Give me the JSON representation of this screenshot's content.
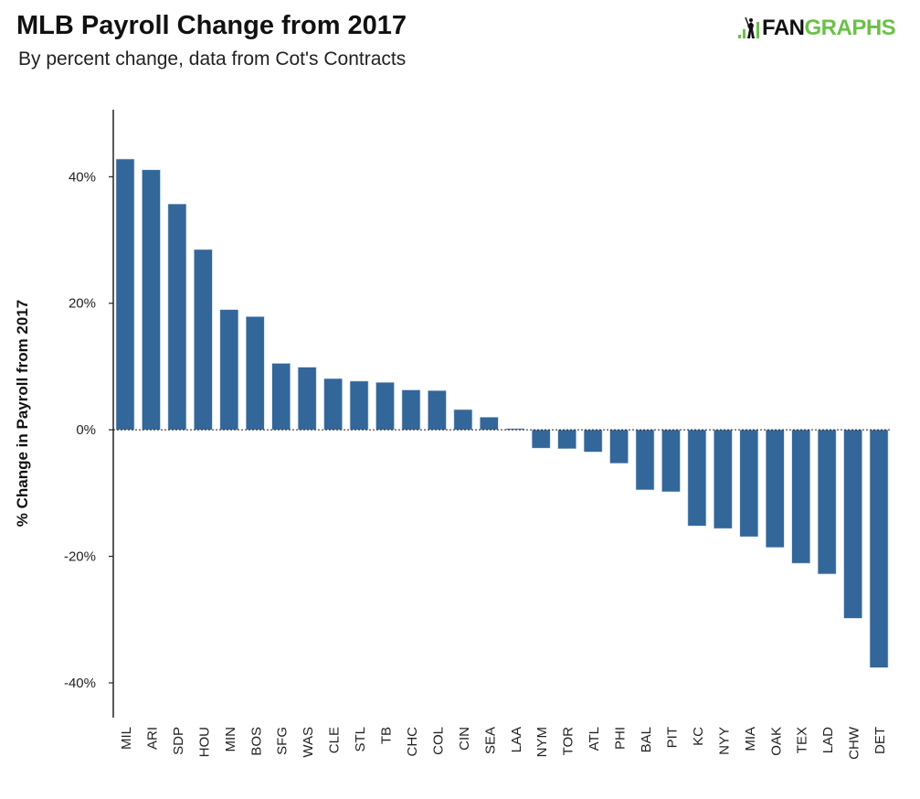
{
  "header": {
    "title": "MLB Payroll Change from 2017",
    "subtitle": "By percent change, data from Cot's Contracts",
    "logo_text": "FANGRAPHS"
  },
  "colors": {
    "bar": "#336699",
    "logo_green": "#6cc04a"
  },
  "chart_data": {
    "type": "bar",
    "title": "MLB Payroll Change from 2017",
    "subtitle": "By percent change, data from Cot's Contracts",
    "xlabel": "",
    "ylabel": "% Change in Payroll from 2017",
    "ylim": [
      -45.5,
      50.6
    ],
    "yticks": [
      40,
      20,
      0,
      -20,
      -40
    ],
    "ytick_labels": [
      "40%",
      "20%",
      "0%",
      "-20%",
      "-40%"
    ],
    "grid": false,
    "zero_line": "dotted",
    "categories": [
      "MIL",
      "ARI",
      "SDP",
      "HOU",
      "MIN",
      "BOS",
      "SFG",
      "WAS",
      "CLE",
      "STL",
      "TB",
      "CHC",
      "COL",
      "CIN",
      "SEA",
      "LAA",
      "NYM",
      "TOR",
      "ATL",
      "PHI",
      "BAL",
      "PIT",
      "KC",
      "NYY",
      "MIA",
      "OAK",
      "TEX",
      "LAD",
      "CHW",
      "DET"
    ],
    "values": [
      42.8,
      41.1,
      35.7,
      28.5,
      19.0,
      17.9,
      10.5,
      9.9,
      8.1,
      7.7,
      7.5,
      6.3,
      6.2,
      3.2,
      2.0,
      0.2,
      -2.9,
      -3.0,
      -3.5,
      -5.3,
      -9.5,
      -9.8,
      -15.2,
      -15.6,
      -16.9,
      -18.6,
      -21.1,
      -22.8,
      -29.8,
      -37.6
    ]
  }
}
